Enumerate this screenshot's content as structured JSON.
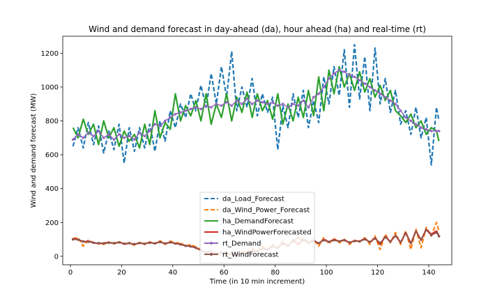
{
  "chart_data": {
    "type": "line",
    "title": "Wind and demand forecast in day-ahead (da), hour ahead (ha) and real-time (rt)",
    "xlabel": "Time (in 10 min increment)",
    "ylabel": "Wind and demand forecast (MW)",
    "xlim": [
      -3,
      149
    ],
    "ylim": [
      -50,
      1300
    ],
    "xticks": [
      0,
      20,
      40,
      60,
      80,
      100,
      120,
      140
    ],
    "yticks": [
      0,
      200,
      400,
      600,
      800,
      1000,
      1200
    ],
    "grid": false,
    "legend_position": "lower-center",
    "series": [
      {
        "name": "da_Load_Forecast",
        "color": "#1f77b4",
        "style": "dashed",
        "x": [
          1,
          3,
          5,
          7,
          9,
          11,
          13,
          15,
          17,
          19,
          21,
          23,
          25,
          27,
          29,
          31,
          33,
          35,
          37,
          39,
          41,
          43,
          45,
          47,
          49,
          51,
          53,
          55,
          57,
          59,
          61,
          63,
          65,
          67,
          69,
          71,
          73,
          75,
          77,
          79,
          81,
          83,
          85,
          87,
          89,
          91,
          93,
          95,
          97,
          99,
          101,
          103,
          105,
          107,
          109,
          111,
          113,
          115,
          117,
          119,
          121,
          123,
          125,
          127,
          129,
          131,
          133,
          135,
          137,
          139,
          141,
          143,
          144
        ],
        "values": [
          650,
          760,
          640,
          790,
          660,
          770,
          610,
          740,
          630,
          780,
          550,
          760,
          620,
          760,
          640,
          780,
          620,
          800,
          680,
          860,
          760,
          900,
          820,
          960,
          860,
          1010,
          880,
          1080,
          900,
          1120,
          940,
          1210,
          860,
          1000,
          880,
          1050,
          830,
          960,
          850,
          940,
          630,
          890,
          760,
          960,
          820,
          980,
          760,
          920,
          790,
          1060,
          900,
          1120,
          950,
          1220,
          880,
          1250,
          930,
          1180,
          860,
          1230,
          900,
          1050,
          850,
          980,
          780,
          860,
          720,
          880,
          700,
          820,
          540,
          880,
          800
        ]
      },
      {
        "name": "da_Wind_Power_Forecast",
        "color": "#ff7f0e",
        "style": "dashed",
        "x": [
          1,
          3,
          5,
          7,
          9,
          11,
          13,
          15,
          17,
          19,
          21,
          23,
          25,
          27,
          29,
          31,
          33,
          35,
          37,
          39,
          41,
          43,
          45,
          47,
          49,
          51,
          53,
          55,
          57,
          59,
          61,
          63,
          65,
          67,
          69,
          71,
          73,
          75,
          77,
          79,
          81,
          83,
          85,
          87,
          89,
          91,
          93,
          95,
          97,
          99,
          101,
          103,
          105,
          107,
          109,
          111,
          113,
          115,
          117,
          119,
          121,
          123,
          125,
          127,
          129,
          131,
          133,
          135,
          137,
          139,
          141,
          143,
          144
        ],
        "values": [
          105,
          110,
          60,
          95,
          80,
          75,
          70,
          85,
          72,
          88,
          70,
          80,
          65,
          82,
          70,
          85,
          75,
          92,
          70,
          90,
          78,
          80,
          60,
          70,
          55,
          40,
          20,
          30,
          10,
          25,
          5,
          15,
          0,
          30,
          20,
          45,
          30,
          60,
          40,
          70,
          50,
          90,
          60,
          100,
          70,
          110,
          80,
          100,
          60,
          110,
          75,
          105,
          80,
          100,
          70,
          95,
          85,
          110,
          70,
          120,
          40,
          130,
          80,
          140,
          70,
          150,
          40,
          160,
          50,
          170,
          120,
          200,
          150
        ]
      },
      {
        "name": "ha_DemandForecast",
        "color": "#2ca02c",
        "style": "solid",
        "x": [
          1,
          3,
          5,
          7,
          9,
          11,
          13,
          15,
          17,
          19,
          21,
          23,
          25,
          27,
          29,
          31,
          33,
          35,
          37,
          39,
          41,
          43,
          45,
          47,
          49,
          51,
          53,
          55,
          57,
          59,
          61,
          63,
          65,
          67,
          69,
          71,
          73,
          75,
          77,
          79,
          81,
          83,
          85,
          87,
          89,
          91,
          93,
          95,
          97,
          99,
          101,
          103,
          105,
          107,
          109,
          111,
          113,
          115,
          117,
          119,
          121,
          123,
          125,
          127,
          129,
          131,
          133,
          135,
          137,
          139,
          141,
          143,
          144
        ],
        "values": [
          760,
          700,
          810,
          720,
          780,
          660,
          800,
          700,
          760,
          650,
          740,
          680,
          720,
          640,
          780,
          660,
          860,
          700,
          790,
          750,
          960,
          800,
          890,
          830,
          920,
          800,
          960,
          780,
          900,
          820,
          960,
          800,
          940,
          850,
          970,
          820,
          960,
          860,
          920,
          810,
          960,
          780,
          900,
          800,
          940,
          820,
          980,
          830,
          1060,
          860,
          1100,
          960,
          1120,
          1000,
          1080,
          980,
          1090,
          970,
          1050,
          940,
          1010,
          920,
          980,
          860,
          830,
          790,
          840,
          760,
          800,
          720,
          760,
          740,
          680
        ]
      },
      {
        "name": "ha_WindPowerForecasted",
        "color": "#d62728",
        "style": "solid",
        "x": [
          1,
          3,
          5,
          7,
          9,
          11,
          13,
          15,
          17,
          19,
          21,
          23,
          25,
          27,
          29,
          31,
          33,
          35,
          37,
          39,
          41,
          43,
          45,
          47,
          49,
          51,
          53,
          55,
          57,
          59,
          61,
          63,
          65,
          67,
          69,
          71,
          73,
          75,
          77,
          79,
          81,
          83,
          85,
          87,
          89,
          91,
          93,
          95,
          97,
          99,
          101,
          103,
          105,
          107,
          109,
          111,
          113,
          115,
          117,
          119,
          121,
          123,
          125,
          127,
          129,
          131,
          133,
          135,
          137,
          139,
          141,
          143,
          144
        ],
        "values": [
          105,
          100,
          85,
          90,
          80,
          75,
          78,
          82,
          76,
          84,
          72,
          78,
          70,
          80,
          74,
          82,
          76,
          86,
          74,
          84,
          76,
          72,
          62,
          60,
          50,
          35,
          22,
          28,
          15,
          20,
          10,
          12,
          5,
          22,
          18,
          35,
          28,
          48,
          38,
          60,
          48,
          80,
          60,
          95,
          70,
          100,
          80,
          95,
          75,
          100,
          85,
          100,
          88,
          98,
          80,
          92,
          88,
          105,
          82,
          110,
          70,
          118,
          85,
          125,
          80,
          140,
          75,
          150,
          95,
          160,
          130,
          150,
          120
        ]
      },
      {
        "name": "rt_Demand",
        "color": "#9467bd",
        "style": "solid",
        "marker": "dot",
        "x": [
          1,
          3,
          5,
          7,
          9,
          11,
          13,
          15,
          17,
          19,
          21,
          23,
          25,
          27,
          29,
          31,
          33,
          35,
          37,
          39,
          41,
          43,
          45,
          47,
          49,
          51,
          53,
          55,
          57,
          59,
          61,
          63,
          65,
          67,
          69,
          71,
          73,
          75,
          77,
          79,
          81,
          83,
          85,
          87,
          89,
          91,
          93,
          95,
          97,
          99,
          101,
          103,
          105,
          107,
          109,
          111,
          113,
          115,
          117,
          119,
          121,
          123,
          125,
          127,
          129,
          131,
          133,
          135,
          137,
          139,
          141,
          143,
          144
        ],
        "values": [
          690,
          720,
          700,
          730,
          710,
          740,
          700,
          720,
          690,
          720,
          700,
          710,
          690,
          730,
          710,
          740,
          780,
          770,
          800,
          820,
          840,
          850,
          860,
          870,
          880,
          870,
          890,
          880,
          900,
          890,
          910,
          890,
          920,
          900,
          930,
          900,
          920,
          910,
          900,
          910,
          890,
          900,
          880,
          900,
          890,
          920,
          880,
          940,
          960,
          1000,
          1050,
          1080,
          1100,
          1090,
          1070,
          1060,
          1040,
          1020,
          1000,
          980,
          960,
          940,
          920,
          900,
          860,
          820,
          800,
          780,
          760,
          750,
          740,
          740,
          740
        ]
      },
      {
        "name": "rt_WindForecast",
        "color": "#8c564b",
        "style": "solid",
        "marker": "dot",
        "x": [
          1,
          3,
          5,
          7,
          9,
          11,
          13,
          15,
          17,
          19,
          21,
          23,
          25,
          27,
          29,
          31,
          33,
          35,
          37,
          39,
          41,
          43,
          45,
          47,
          49,
          51,
          53,
          55,
          57,
          59,
          61,
          63,
          65,
          67,
          69,
          71,
          73,
          75,
          77,
          79,
          81,
          83,
          85,
          87,
          89,
          91,
          93,
          95,
          97,
          99,
          101,
          103,
          105,
          107,
          109,
          111,
          113,
          115,
          117,
          119,
          121,
          123,
          125,
          127,
          129,
          131,
          133,
          135,
          137,
          139,
          141,
          143,
          144
        ],
        "values": [
          100,
          98,
          88,
          86,
          80,
          78,
          76,
          80,
          78,
          82,
          75,
          78,
          72,
          78,
          74,
          80,
          76,
          84,
          76,
          82,
          75,
          70,
          62,
          58,
          50,
          38,
          25,
          28,
          18,
          22,
          12,
          15,
          10,
          20,
          20,
          32,
          30,
          45,
          40,
          58,
          50,
          75,
          62,
          90,
          110,
          95,
          80,
          90,
          78,
          95,
          85,
          95,
          88,
          95,
          82,
          90,
          88,
          100,
          85,
          105,
          80,
          112,
          88,
          120,
          85,
          135,
          80,
          145,
          100,
          155,
          125,
          140,
          118
        ]
      }
    ]
  }
}
